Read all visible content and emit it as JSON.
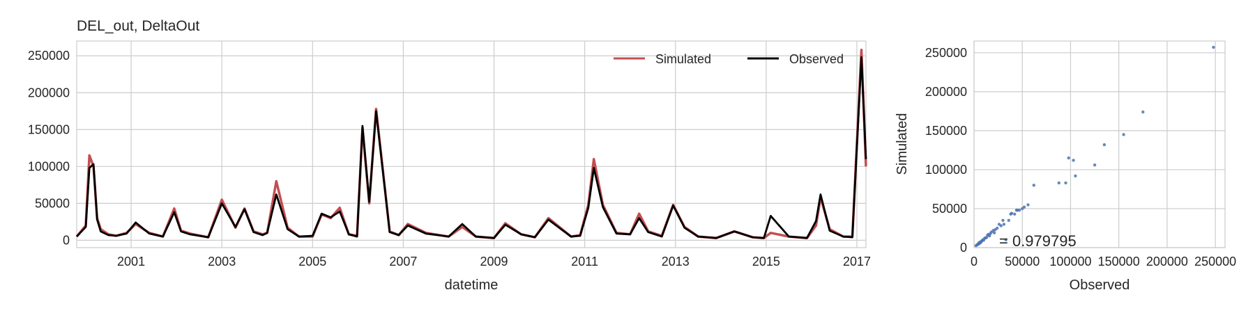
{
  "chart_data": [
    {
      "type": "line",
      "title": "DEL_out, DeltaOut",
      "xlabel": "datetime",
      "ylabel": "",
      "x_ticks": [
        "2001",
        "2003",
        "2005",
        "2007",
        "2009",
        "2011",
        "2013",
        "2015",
        "2017"
      ],
      "y_ticks": [
        "0",
        "50000",
        "100000",
        "150000",
        "200000",
        "250000"
      ],
      "xlim": [
        1999.8,
        2017.2
      ],
      "ylim": [
        -10000,
        270000
      ],
      "grid": true,
      "legend_position": "top-right",
      "series": [
        {
          "name": "Simulated",
          "color": "#c44e52",
          "x": [
            1999.8,
            2000.0,
            2000.08,
            2000.17,
            2000.25,
            2000.33,
            2000.5,
            2000.67,
            2000.9,
            2001.1,
            2001.4,
            2001.7,
            2001.95,
            2002.1,
            2002.3,
            2002.7,
            2003.0,
            2003.3,
            2003.5,
            2003.7,
            2003.9,
            2004.0,
            2004.2,
            2004.45,
            2004.7,
            2005.0,
            2005.2,
            2005.4,
            2005.6,
            2005.8,
            2005.98,
            2006.1,
            2006.25,
            2006.4,
            2006.7,
            2006.9,
            2007.1,
            2007.5,
            2008.0,
            2008.3,
            2008.6,
            2009.0,
            2009.25,
            2009.6,
            2009.9,
            2010.2,
            2010.5,
            2010.7,
            2010.9,
            2011.08,
            2011.2,
            2011.4,
            2011.7,
            2012.0,
            2012.2,
            2012.4,
            2012.7,
            2012.95,
            2013.2,
            2013.5,
            2013.9,
            2014.3,
            2014.7,
            2014.95,
            2015.1,
            2015.5,
            2015.9,
            2016.1,
            2016.2,
            2016.4,
            2016.7,
            2016.9,
            2017.1,
            2017.2
          ],
          "values": [
            5000,
            20000,
            115000,
            100000,
            30000,
            15000,
            8000,
            6000,
            10000,
            22000,
            10000,
            5000,
            43000,
            13000,
            9000,
            4000,
            55000,
            17000,
            43000,
            12000,
            8000,
            10000,
            80000,
            17000,
            5000,
            5000,
            35000,
            30000,
            44000,
            8000,
            6000,
            152000,
            50000,
            178000,
            12000,
            7000,
            22000,
            10000,
            5000,
            18000,
            5000,
            3000,
            23000,
            8000,
            4000,
            30000,
            15000,
            5000,
            7000,
            48000,
            110000,
            48000,
            10000,
            8000,
            36000,
            12000,
            6000,
            48000,
            18000,
            5000,
            3000,
            12000,
            4000,
            3000,
            10000,
            5000,
            3000,
            20000,
            58000,
            15000,
            5000,
            5000,
            258000,
            100000
          ]
        },
        {
          "name": "Observed",
          "color": "#000000",
          "x": [
            1999.8,
            2000.0,
            2000.08,
            2000.17,
            2000.25,
            2000.33,
            2000.5,
            2000.67,
            2000.9,
            2001.1,
            2001.4,
            2001.7,
            2001.95,
            2002.1,
            2002.3,
            2002.7,
            2003.0,
            2003.3,
            2003.5,
            2003.7,
            2003.9,
            2004.0,
            2004.2,
            2004.45,
            2004.7,
            2005.0,
            2005.2,
            2005.4,
            2005.6,
            2005.8,
            2005.98,
            2006.1,
            2006.25,
            2006.4,
            2006.7,
            2006.9,
            2007.1,
            2007.5,
            2008.0,
            2008.3,
            2008.6,
            2009.0,
            2009.25,
            2009.6,
            2009.9,
            2010.2,
            2010.5,
            2010.7,
            2010.9,
            2011.08,
            2011.2,
            2011.4,
            2011.7,
            2012.0,
            2012.2,
            2012.4,
            2012.7,
            2012.95,
            2013.2,
            2013.5,
            2013.9,
            2014.3,
            2014.7,
            2014.95,
            2015.1,
            2015.5,
            2015.9,
            2016.1,
            2016.2,
            2016.4,
            2016.7,
            2016.9,
            2017.1,
            2017.2
          ],
          "values": [
            5000,
            18000,
            98000,
            103000,
            28000,
            12000,
            7000,
            6000,
            9000,
            24000,
            9000,
            5000,
            38000,
            12000,
            8000,
            4000,
            50000,
            18000,
            42000,
            11000,
            7000,
            10000,
            62000,
            15000,
            5000,
            6000,
            36000,
            31000,
            39000,
            8000,
            5000,
            155000,
            52000,
            175000,
            11000,
            7000,
            20000,
            9000,
            5000,
            22000,
            5000,
            3000,
            21000,
            8000,
            4000,
            28000,
            14000,
            5000,
            6000,
            44000,
            98000,
            45000,
            9000,
            8000,
            30000,
            11000,
            5000,
            47000,
            17000,
            5000,
            3000,
            12000,
            4000,
            3000,
            33000,
            5000,
            3000,
            26000,
            62000,
            13000,
            5000,
            4000,
            248000,
            110000
          ]
        }
      ]
    },
    {
      "type": "scatter",
      "title": "",
      "xlabel": "Observed",
      "ylabel": "Simulated",
      "x_ticks": [
        "0",
        "50000",
        "100000",
        "150000",
        "200000",
        "250000"
      ],
      "y_ticks": [
        "0",
        "50000",
        "100000",
        "150000",
        "200000",
        "250000"
      ],
      "xlim": [
        0,
        260000
      ],
      "ylim": [
        0,
        265000
      ],
      "grid": true,
      "point_color": "#4c72b0",
      "annotation": "= 0.979795",
      "points": {
        "x": [
          2000,
          3000,
          4000,
          4500,
          5000,
          5500,
          6000,
          7000,
          7500,
          8000,
          9000,
          10000,
          11000,
          12000,
          13000,
          14000,
          15000,
          16000,
          17000,
          18000,
          20000,
          21000,
          22000,
          24000,
          26000,
          28000,
          30000,
          31000,
          33000,
          36000,
          38000,
          39000,
          42000,
          44000,
          45000,
          47000,
          50000,
          52000,
          56000,
          62000,
          88000,
          95000,
          98000,
          103000,
          105000,
          125000,
          135000,
          155000,
          175000,
          248000
        ],
        "y": [
          2500,
          3500,
          4000,
          5000,
          6000,
          5000,
          7000,
          6500,
          8000,
          8500,
          10000,
          9500,
          12000,
          12500,
          13000,
          16000,
          17000,
          15000,
          18000,
          20000,
          22000,
          19000,
          23000,
          25000,
          30000,
          28000,
          35000,
          30000,
          10000,
          35000,
          43000,
          44000,
          43000,
          48000,
          48000,
          48000,
          50000,
          52000,
          55000,
          80000,
          83000,
          83000,
          115000,
          112000,
          92000,
          106000,
          132000,
          145000,
          174000,
          257000
        ]
      }
    }
  ]
}
